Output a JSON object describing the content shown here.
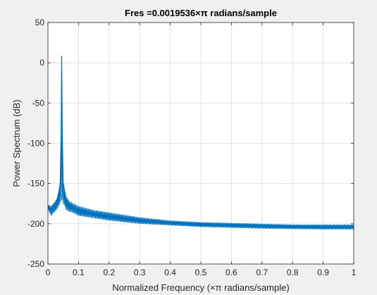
{
  "window": {
    "background": "#f0f0f0"
  },
  "chart_data": {
    "type": "line",
    "title": "Fres =0.0019536×π radians/sample",
    "xlabel": "Normalized Frequency  (×π radians/sample)",
    "ylabel": "Power Spectrum (dB)",
    "xlim": [
      0,
      1
    ],
    "ylim": [
      -250,
      50
    ],
    "xticks": [
      0,
      0.1,
      0.2,
      0.3,
      0.4,
      0.5,
      0.6,
      0.7,
      0.8,
      0.9,
      1
    ],
    "xtick_labels": [
      "0",
      "0.1",
      "0.2",
      "0.3",
      "0.4",
      "0.5",
      "0.6",
      "0.7",
      "0.8",
      "0.9",
      "1"
    ],
    "yticks": [
      50,
      0,
      -50,
      -100,
      -150,
      -200,
      -250
    ],
    "ytick_labels": [
      "50",
      "0",
      "-50",
      "-100",
      "-150",
      "-200",
      "-250"
    ],
    "grid": true,
    "legend": "none",
    "colors": {
      "line": "#0072bd",
      "grid": "#dcdcdc",
      "axes": "#262626",
      "plot_background": "#ffffff"
    },
    "series": [
      {
        "x": [
          0,
          0.01,
          0.02,
          0.03,
          0.035,
          0.04,
          0.043,
          0.045,
          0.047,
          0.05,
          0.055,
          0.06,
          0.07,
          0.08,
          0.1,
          0.15,
          0.2,
          0.3,
          0.4,
          0.5,
          0.6,
          0.7,
          0.8,
          0.9,
          1.0
        ],
        "values": [
          -178,
          -181,
          -176,
          -170,
          -162,
          -150,
          -90,
          8,
          -90,
          -150,
          -160,
          -170,
          -176,
          -178,
          -182,
          -187,
          -190,
          -195,
          -198,
          -200,
          -201,
          -202,
          -202.5,
          -203,
          -203
        ],
        "upper_envelope": [
          -176,
          -178,
          -174,
          -168,
          -160,
          -148,
          -90,
          8,
          -90,
          -148,
          -158,
          -166,
          -172,
          -174,
          -178,
          -183,
          -186,
          -192,
          -196,
          -198,
          -199,
          -200,
          -201,
          -201,
          -201
        ],
        "lower_envelope": [
          -182,
          -190,
          -186,
          -182,
          -178,
          -175,
          -170,
          -172,
          -170,
          -175,
          -178,
          -183,
          -185,
          -186,
          -190,
          -193,
          -196,
          -200,
          -202,
          -204,
          -205,
          -206,
          -206.5,
          -207,
          -207
        ]
      }
    ]
  }
}
